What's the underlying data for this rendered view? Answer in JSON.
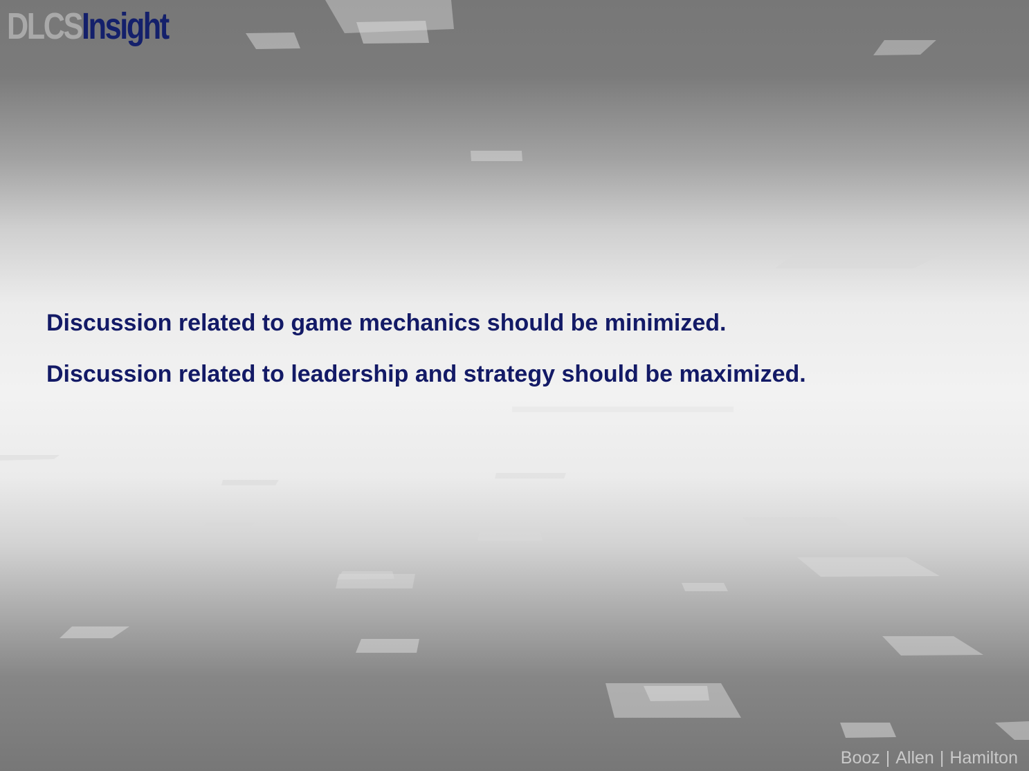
{
  "logo": {
    "part1": "DLCS",
    "part2": "Insight"
  },
  "content": {
    "line1": "Discussion related to game mechanics should be minimized.",
    "line2": "Discussion related to leadership and strategy should be maximized."
  },
  "footer": {
    "name1": "Booz",
    "name2": "Allen",
    "name3": "Hamilton",
    "separator": "|"
  },
  "colors": {
    "title_blue": "#131a66",
    "logo_gray": "#a9a9a9",
    "footer_gray": "#c9c9c9"
  }
}
